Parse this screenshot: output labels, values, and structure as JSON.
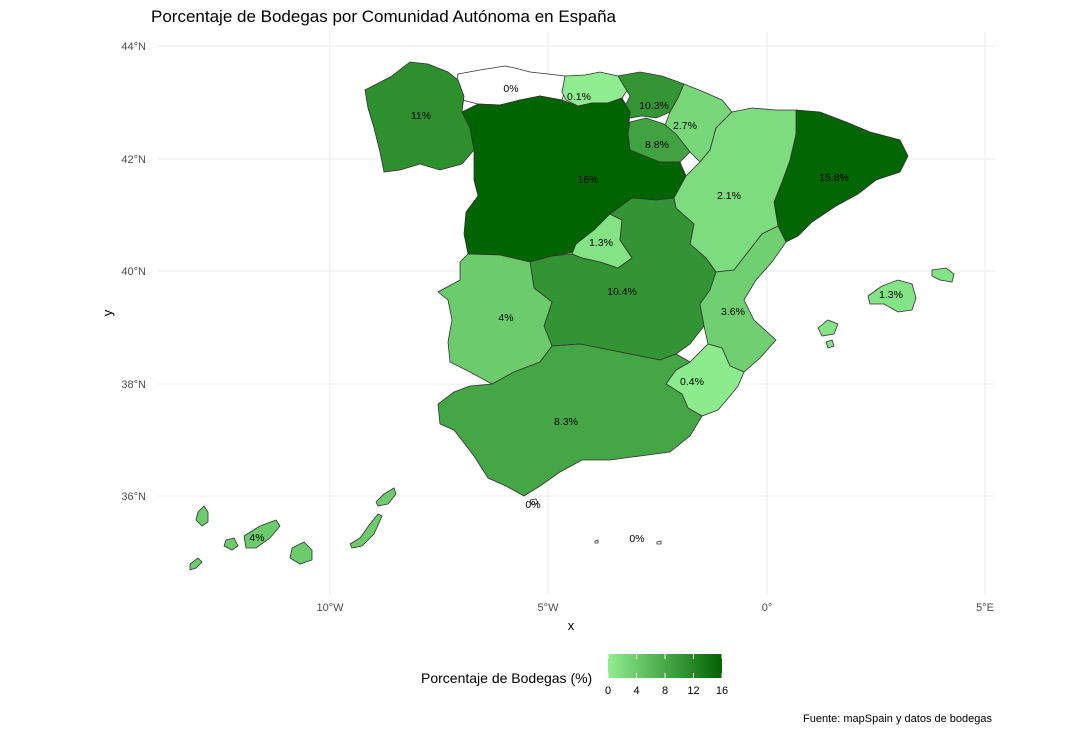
{
  "chart_data": {
    "type": "choropleth",
    "title": "Porcentaje de Bodegas por Comunidad Autónoma en España",
    "xlabel": "x",
    "ylabel": "y",
    "x_ticks": [
      "10°W",
      "5°W",
      "0°",
      "5°E"
    ],
    "y_ticks": [
      "44°N",
      "42°N",
      "40°N",
      "38°N",
      "36°N"
    ],
    "legend": {
      "title": "Porcentaje de Bodegas (%)",
      "ticks": [
        "0",
        "4",
        "8",
        "12",
        "16"
      ],
      "range": [
        0,
        16
      ],
      "low_color": "#90ee90",
      "high_color": "#006400",
      "position": "bottom"
    },
    "caption": "Fuente: mapSpain y datos de bodegas",
    "regions": [
      {
        "label": "0%",
        "value": 0
      },
      {
        "label": "0.1%",
        "value": 0.1
      },
      {
        "label": "10.3%",
        "value": 10.3
      },
      {
        "label": "11%",
        "value": 11
      },
      {
        "label": "2.7%",
        "value": 2.7
      },
      {
        "label": "8.8%",
        "value": 8.8
      },
      {
        "label": "16%",
        "value": 16
      },
      {
        "label": "15.8%",
        "value": 15.8
      },
      {
        "label": "2.1%",
        "value": 2.1
      },
      {
        "label": "1.3%",
        "value": 1.3
      },
      {
        "label": "10.4%",
        "value": 10.4
      },
      {
        "label": "4%",
        "value": 4
      },
      {
        "label": "3.6%",
        "value": 3.6
      },
      {
        "label": "1.3%",
        "value": 1.3
      },
      {
        "label": "0.4%",
        "value": 0.4
      },
      {
        "label": "8.3%",
        "value": 8.3
      },
      {
        "label": "0%",
        "value": 0
      },
      {
        "label": "0%",
        "value": 0
      },
      {
        "label": "4%",
        "value": 4
      }
    ]
  }
}
